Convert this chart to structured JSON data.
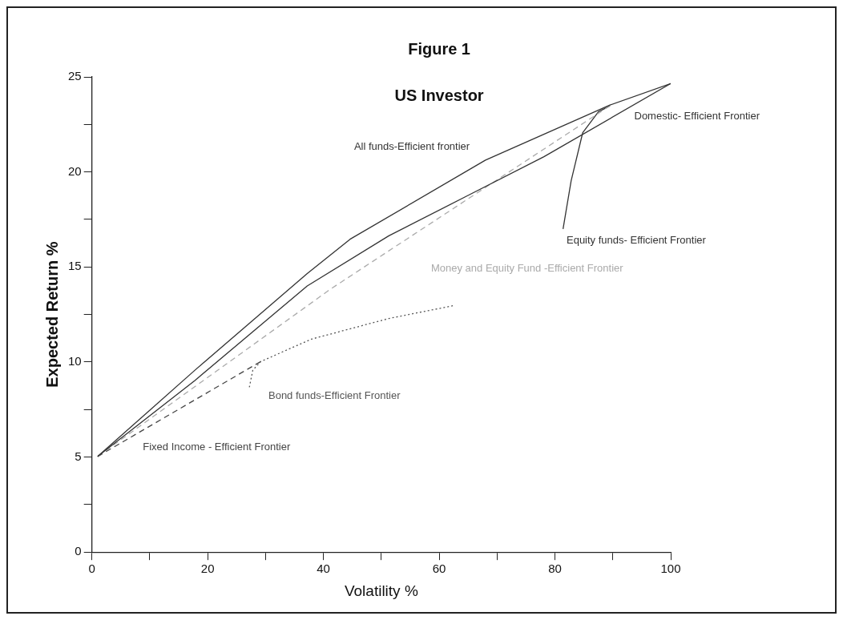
{
  "chart_data": {
    "type": "line",
    "title": "Figure 1",
    "subtitle": "US Investor",
    "xlabel": "Volatility %",
    "ylabel": "Expected Return %",
    "xlim": [
      0,
      100
    ],
    "ylim": [
      0,
      25
    ],
    "xticks": [
      0,
      {
        "value": 10,
        "label": null
      },
      20,
      {
        "value": 30,
        "label": null
      },
      40,
      {
        "value": 50,
        "label": null
      },
      60,
      {
        "value": 70,
        "label": null
      },
      80,
      {
        "value": 90,
        "label": null
      },
      100
    ],
    "yticks": [
      0,
      {
        "value": 2.5,
        "label": null
      },
      5,
      {
        "value": 7.5,
        "label": null
      },
      10,
      {
        "value": 12.5,
        "label": null
      },
      15,
      {
        "value": 17.5,
        "label": null
      },
      20,
      {
        "value": 22.5,
        "label": null
      },
      25
    ],
    "grid": false,
    "legend": false,
    "marker": "none",
    "series": [
      {
        "name": "All funds-Efficient frontier",
        "color": "#333333",
        "line_style": "solid",
        "x": [
          1,
          17.8,
          37.2,
          44.6,
          68,
          89.5,
          100
        ],
        "values": [
          5.03,
          9.57,
          14.65,
          16.46,
          20.62,
          23.52,
          24.65
        ]
      },
      {
        "name": "Domestic- Efficient Frontier",
        "color": "#333333",
        "line_style": "solid",
        "x": [
          1,
          17.8,
          37.2,
          51.3,
          64.7,
          78.1,
          100
        ],
        "values": [
          5.03,
          9.03,
          14,
          16.64,
          18.72,
          20.8,
          24.65
        ]
      },
      {
        "name": "Money and Equity Fund -Efficient Frontier",
        "color": "#aaaaaa",
        "line_style": "dashed",
        "x": [
          1,
          41.2,
          89.5
        ],
        "values": [
          5.03,
          13.83,
          23.48
        ]
      },
      {
        "name": "Fixed Income - Efficient Frontier",
        "color": "#444444",
        "line_style": "dashed",
        "x": [
          1,
          29.2
        ],
        "values": [
          5.03,
          10.03
        ]
      },
      {
        "name": "Bond funds-Efficient Frontier",
        "color": "#555555",
        "line_style": "dotted",
        "x": [
          27.2,
          27.8,
          29.2,
          37.9,
          51.3,
          62.7
        ],
        "values": [
          8.67,
          9.57,
          10.03,
          11.2,
          12.29,
          12.98
        ]
      },
      {
        "name": "Equity funds- Efficient Frontier",
        "color": "#333333",
        "line_style": "solid",
        "x": [
          81.4,
          82.8,
          84.8,
          87.5,
          89.5
        ],
        "values": [
          17,
          19.54,
          22.07,
          23.16,
          23.48
        ]
      }
    ]
  }
}
